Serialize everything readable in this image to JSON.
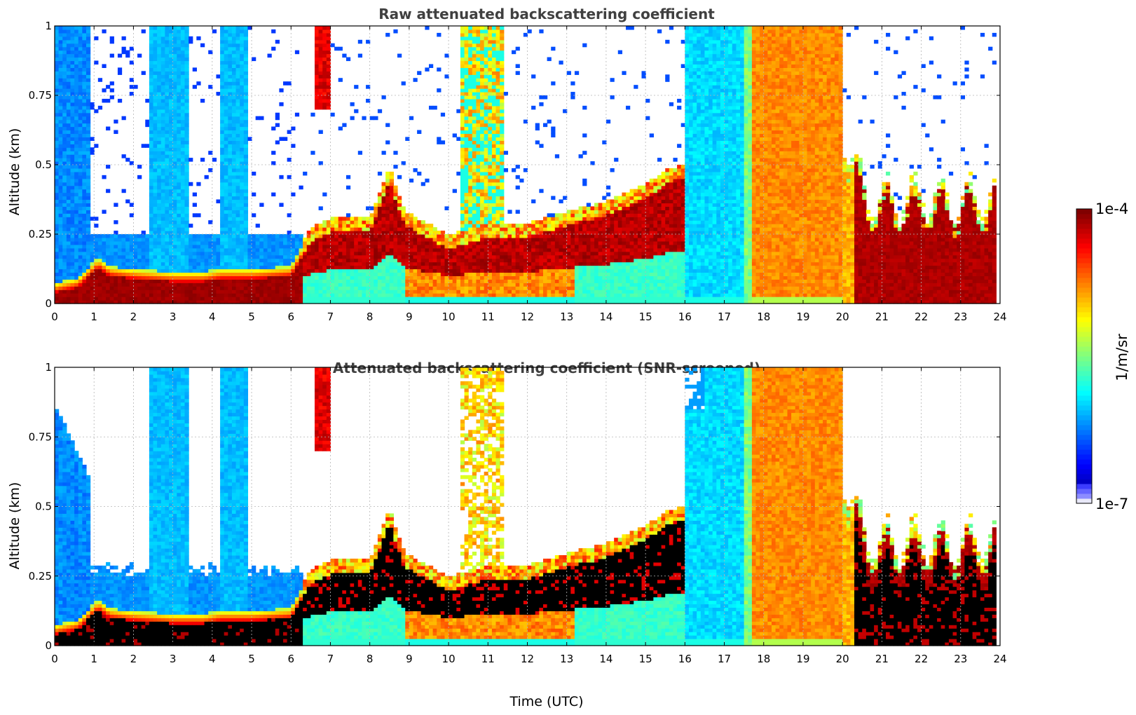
{
  "chart_data": [
    {
      "type": "heatmap",
      "title": "Raw attenuated backscattering coefficient",
      "xlabel": "",
      "ylabel": "Altitude (km)",
      "xlim": [
        0,
        24
      ],
      "ylim": [
        0,
        1
      ],
      "xticks": [
        "0",
        "1",
        "2",
        "3",
        "4",
        "5",
        "6",
        "7",
        "8",
        "9",
        "10",
        "11",
        "12",
        "13",
        "14",
        "15",
        "16",
        "17",
        "18",
        "19",
        "20",
        "21",
        "22",
        "23",
        "24"
      ],
      "yticks": [
        "0",
        "0.25",
        "0.5",
        "0.75",
        "1"
      ],
      "grid": true,
      "screened": false
    },
    {
      "type": "heatmap",
      "title": "Attenuated backscattering coefficient (SNR-screened)",
      "xlabel": "Time (UTC)",
      "ylabel": "Altitude (km)",
      "xlim": [
        0,
        24
      ],
      "ylim": [
        0,
        1
      ],
      "xticks": [
        "0",
        "1",
        "2",
        "3",
        "4",
        "5",
        "6",
        "7",
        "8",
        "9",
        "10",
        "11",
        "12",
        "13",
        "14",
        "15",
        "16",
        "17",
        "18",
        "19",
        "20",
        "21",
        "22",
        "23",
        "24"
      ],
      "yticks": [
        "0",
        "0.25",
        "0.5",
        "0.75",
        "1"
      ],
      "grid": true,
      "screened": true
    }
  ],
  "colorbar": {
    "label": "1/m/sr",
    "max_label": "1e-4",
    "min_label": "1e-7",
    "colormap": "jet",
    "scale": "log",
    "range": [
      1e-07,
      0.0001
    ]
  }
}
